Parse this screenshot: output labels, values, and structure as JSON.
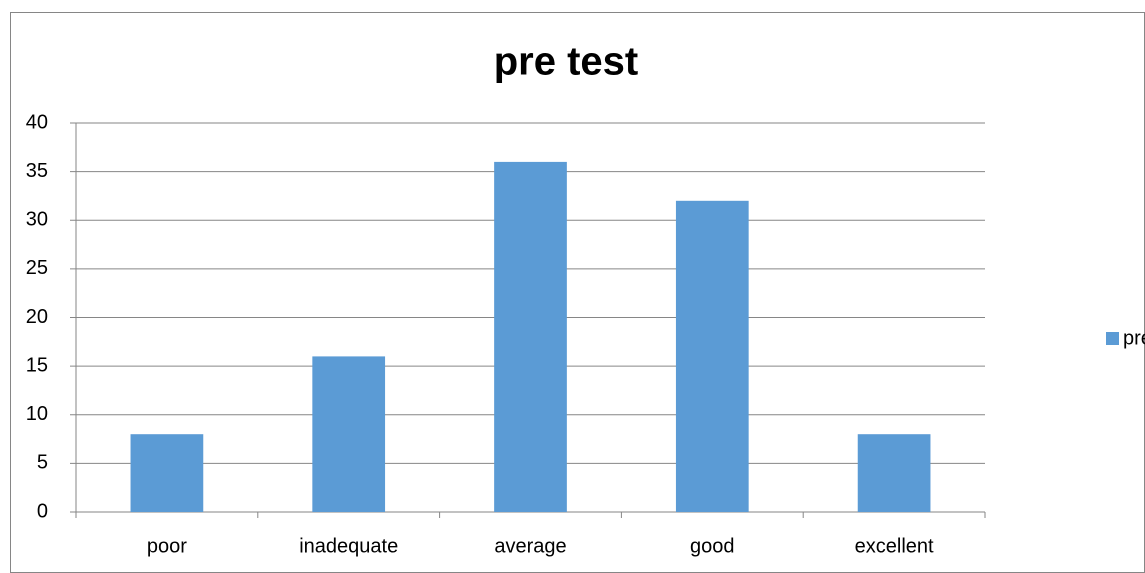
{
  "chart_data": {
    "type": "bar",
    "title": "pre test",
    "categories": [
      "poor",
      "inadequate",
      "average",
      "good",
      "excellent"
    ],
    "series": [
      {
        "name": "pre test",
        "color": "#5b9bd5",
        "values": [
          8,
          16,
          36,
          32,
          8
        ]
      }
    ],
    "ylim": [
      0,
      40
    ],
    "yticks": [
      0,
      5,
      10,
      15,
      20,
      25,
      30,
      35,
      40
    ],
    "grid": true,
    "legend": "right"
  }
}
